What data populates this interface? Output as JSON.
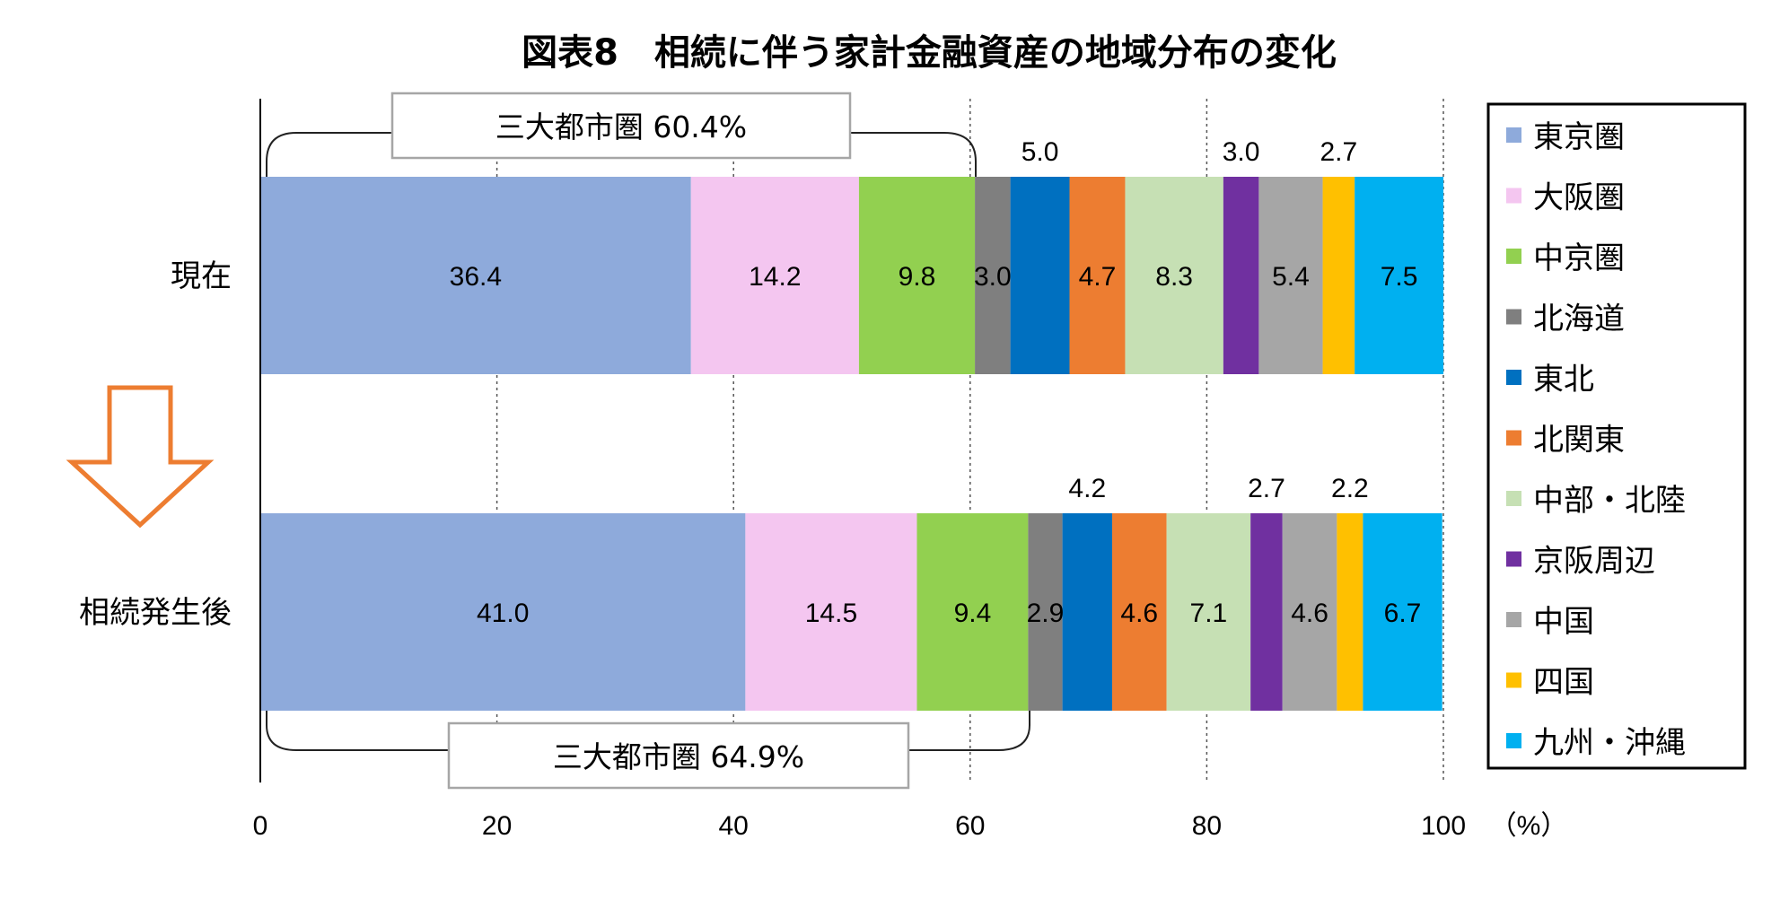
{
  "title": "図表8　相続に伴う家計金融資産の地域分布の変化",
  "unit_label": "（%）",
  "callouts": {
    "top": "三大都市圏 60.4%",
    "bottom": "三大都市圏 64.9%"
  },
  "colors": {
    "東京圏": "#8eaadb",
    "大阪圏": "#f4c6f0",
    "中京圏": "#92d050",
    "北海道": "#7f7f7f",
    "東北": "#0070c0",
    "北関東": "#ed7d31",
    "中部・北陸": "#c6e0b4",
    "京阪周辺": "#7030a0",
    "中国": "#a6a6a6",
    "四国": "#ffc000",
    "九州・沖縄": "#00b0f0",
    "arrow": "#ed7d31"
  },
  "chart_data": {
    "type": "bar",
    "orientation": "horizontal",
    "stacked": true,
    "title": "図表8　相続に伴う家計金融資産の地域分布の変化",
    "categories": [
      "現在",
      "相続発生後"
    ],
    "xlim": [
      0,
      100
    ],
    "xticks": [
      "0",
      "20",
      "40",
      "60",
      "80",
      "100"
    ],
    "xunit": "（%）",
    "grid": true,
    "legend_position": "right",
    "series": [
      {
        "name": "東京圏",
        "values": [
          36.4,
          41.0
        ]
      },
      {
        "name": "大阪圏",
        "values": [
          14.2,
          14.5
        ]
      },
      {
        "name": "中京圏",
        "values": [
          9.8,
          9.4
        ]
      },
      {
        "name": "北海道",
        "values": [
          3.0,
          2.9
        ]
      },
      {
        "name": "東北",
        "values": [
          5.0,
          4.2
        ]
      },
      {
        "name": "北関東",
        "values": [
          4.7,
          4.6
        ]
      },
      {
        "name": "中部・北陸",
        "values": [
          8.3,
          7.1
        ]
      },
      {
        "name": "京阪周辺",
        "values": [
          3.0,
          2.7
        ]
      },
      {
        "name": "中国",
        "values": [
          5.4,
          4.6
        ]
      },
      {
        "name": "四国",
        "values": [
          2.7,
          2.2
        ]
      },
      {
        "name": "九州・沖縄",
        "values": [
          7.5,
          6.7
        ]
      }
    ]
  }
}
